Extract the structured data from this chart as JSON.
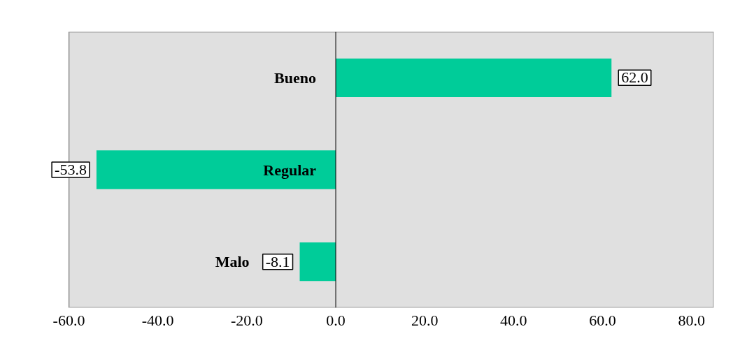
{
  "chart_data": {
    "type": "bar",
    "orientation": "horizontal",
    "categories": [
      "Bueno",
      "Regular",
      "Malo"
    ],
    "values": [
      62.0,
      -53.8,
      -8.1
    ],
    "color": "#00cc99",
    "value_labels": [
      "62.0",
      "-53.8",
      "-8.1"
    ],
    "xlim": [
      -60,
      85
    ],
    "xticks": [
      {
        "value": -60,
        "label": "-60.0"
      },
      {
        "value": -40,
        "label": "-40.0"
      },
      {
        "value": -20,
        "label": "-20.0"
      },
      {
        "value": 0,
        "label": "0.0"
      },
      {
        "value": 20,
        "label": "20.0"
      },
      {
        "value": 40,
        "label": "40.0"
      },
      {
        "value": 60,
        "label": "60.0"
      },
      {
        "value": 80,
        "label": "80.0"
      }
    ],
    "grid": false
  }
}
